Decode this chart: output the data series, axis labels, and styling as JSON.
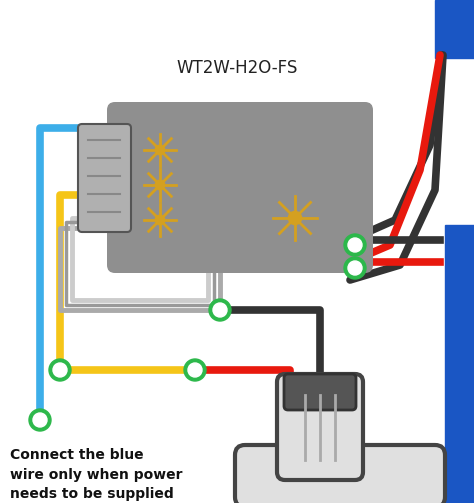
{
  "bg_color": "#ffffff",
  "title": "WT2W-H2O-FS",
  "title_fontsize": 12,
  "annotation_text": "Connect the blue\nwire only when power\nneeds to be supplied\nto the flow sensor.",
  "annotation_fontsize": 10,
  "BLUE": "#3daee9",
  "YELLOW": "#f5c518",
  "BLACK": "#333333",
  "RED": "#e8190e",
  "GREEN": "#2db84b",
  "WHITE": "#ffffff",
  "GRAY_BOX": "#8f8f8f",
  "BLUE_BAR": "#1a56c4",
  "DARK_GRAY": "#555555"
}
